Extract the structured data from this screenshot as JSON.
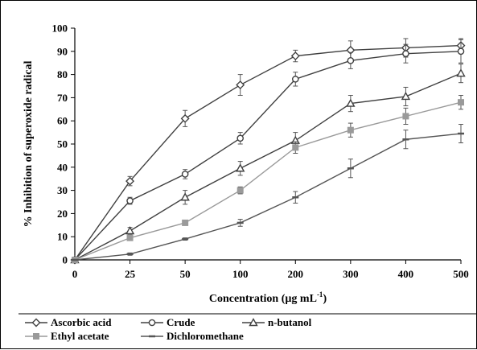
{
  "chart_data": {
    "type": "line",
    "title": "",
    "xlabel": "Concentration (µg mL",
    "xlabel_sup": "-1",
    "xlabel_tail": ")",
    "ylabel": "% Inhibition of superoxide radical",
    "categories": [
      "0",
      "25",
      "50",
      "100",
      "200",
      "300",
      "400",
      "500"
    ],
    "ylim": [
      0,
      100
    ],
    "yticks": [
      0,
      10,
      20,
      30,
      40,
      50,
      60,
      70,
      80,
      90,
      100
    ],
    "grid": false,
    "legend_position": "bottom",
    "series": [
      {
        "name": "Ascorbic acid",
        "marker": "diamond",
        "color": "#404040",
        "values": [
          0,
          34,
          61,
          75.5,
          88,
          90.5,
          91.5,
          92.5
        ],
        "errors": [
          0,
          2,
          3.5,
          4.5,
          2.5,
          4,
          4,
          3
        ]
      },
      {
        "name": "Crude",
        "marker": "circle",
        "color": "#404040",
        "values": [
          0,
          25.5,
          37,
          52.5,
          78,
          86,
          89,
          90
        ],
        "errors": [
          0,
          1.5,
          2,
          2.5,
          3,
          3.5,
          4,
          5
        ]
      },
      {
        "name": "n-butanol",
        "marker": "triangle",
        "color": "#404040",
        "values": [
          0,
          12.5,
          27,
          39.5,
          51.5,
          67.5,
          70.5,
          80.5
        ],
        "errors": [
          0,
          1.5,
          3,
          3,
          3.5,
          3.5,
          4,
          4
        ]
      },
      {
        "name": "Ethyl acetate",
        "marker": "square",
        "color": "#9a9a9a",
        "values": [
          0,
          9.5,
          16,
          30,
          48.5,
          56,
          62,
          68
        ],
        "errors": [
          0,
          1,
          1,
          1.5,
          2.5,
          3,
          3.5,
          3
        ]
      },
      {
        "name": "Dichloromethane",
        "marker": "dash",
        "color": "#555555",
        "values": [
          0,
          2.5,
          9,
          16,
          27,
          39.5,
          52,
          54.5
        ],
        "errors": [
          0,
          0.5,
          0.5,
          1.5,
          2.5,
          4,
          4,
          4
        ]
      }
    ]
  }
}
